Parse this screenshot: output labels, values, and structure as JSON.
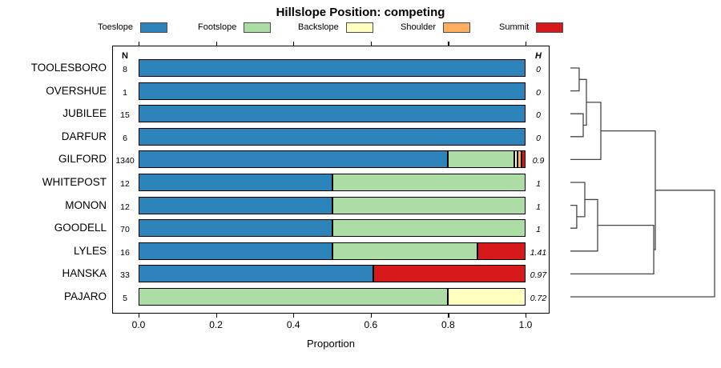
{
  "title": "Hillslope Position: competing",
  "legend": [
    {
      "label": "Toeslope",
      "color": "#2B83BA"
    },
    {
      "label": "Footslope",
      "color": "#ABDDA4"
    },
    {
      "label": "Backslope",
      "color": "#FFFFBF"
    },
    {
      "label": "Shoulder",
      "color": "#FDAE61"
    },
    {
      "label": "Summit",
      "color": "#D7191C"
    }
  ],
  "columns": {
    "n_header": "N",
    "h_header": "H"
  },
  "xaxis": {
    "label": "Proportion",
    "ticks": [
      "0.0",
      "0.2",
      "0.4",
      "0.6",
      "0.8",
      "1.0"
    ]
  },
  "chart_data": {
    "type": "bar",
    "orientation": "horizontal-stacked",
    "title": "Hillslope Position: competing",
    "xlabel": "Proportion",
    "xlim": [
      0,
      1
    ],
    "categories": [
      "Toeslope",
      "Footslope",
      "Backslope",
      "Shoulder",
      "Summit"
    ],
    "colors": [
      "#2B83BA",
      "#ABDDA4",
      "#FFFFBF",
      "#FDAE61",
      "#D7191C"
    ],
    "rows": [
      {
        "name": "TOOLESBORO",
        "n": "8",
        "h": "0",
        "values": [
          1,
          0,
          0,
          0,
          0
        ]
      },
      {
        "name": "OVERSHUE",
        "n": "1",
        "h": "0",
        "values": [
          1,
          0,
          0,
          0,
          0
        ]
      },
      {
        "name": "JUBILEE",
        "n": "15",
        "h": "0",
        "values": [
          1,
          0,
          0,
          0,
          0
        ]
      },
      {
        "name": "DARFUR",
        "n": "6",
        "h": "0",
        "values": [
          1,
          0,
          0,
          0,
          0
        ]
      },
      {
        "name": "GILFORD",
        "n": "1340",
        "h": "0.9",
        "values": [
          0.8,
          0.17,
          0.01,
          0.01,
          0.01
        ]
      },
      {
        "name": "WHITEPOST",
        "n": "12",
        "h": "1",
        "values": [
          0.5,
          0.5,
          0,
          0,
          0
        ]
      },
      {
        "name": "MONON",
        "n": "12",
        "h": "1",
        "values": [
          0.5,
          0.5,
          0,
          0,
          0
        ]
      },
      {
        "name": "GOODELL",
        "n": "70",
        "h": "1",
        "values": [
          0.5,
          0.5,
          0,
          0,
          0
        ]
      },
      {
        "name": "LYLES",
        "n": "16",
        "h": "1.41",
        "values": [
          0.5,
          0.375,
          0,
          0,
          0.125
        ]
      },
      {
        "name": "HANSKA",
        "n": "33",
        "h": "0.97",
        "values": [
          0.606,
          0,
          0,
          0,
          0.394
        ]
      },
      {
        "name": "PAJARO",
        "n": "5",
        "h": "0.72",
        "values": [
          0,
          0.8,
          0.2,
          0,
          0
        ]
      }
    ]
  },
  "dendrogram": {
    "merges": [
      {
        "id": "M1",
        "a": "TOOLESBORO",
        "b": "OVERSHUE",
        "h": 0.061
      },
      {
        "id": "M2",
        "a": "JUBILEE",
        "b": "DARFUR",
        "h": 0.089
      },
      {
        "id": "M3",
        "a": "M1",
        "b": "M2",
        "h": 0.111
      },
      {
        "id": "M4",
        "a": "M3",
        "b": "GILFORD",
        "h": 0.211
      },
      {
        "id": "M5",
        "a": "MONON",
        "b": "GOODELL",
        "h": 0.044
      },
      {
        "id": "M6",
        "a": "WHITEPOST",
        "b": "M5",
        "h": 0.1
      },
      {
        "id": "M7",
        "a": "M6",
        "b": "LYLES",
        "h": 0.189
      },
      {
        "id": "M8",
        "a": "M7",
        "b": "HANSKA",
        "h": 0.578
      },
      {
        "id": "M9",
        "a": "M4",
        "b": "M8",
        "h": 0.589
      },
      {
        "id": "M10",
        "a": "M9",
        "b": "PAJARO",
        "h": 1.0
      }
    ]
  }
}
